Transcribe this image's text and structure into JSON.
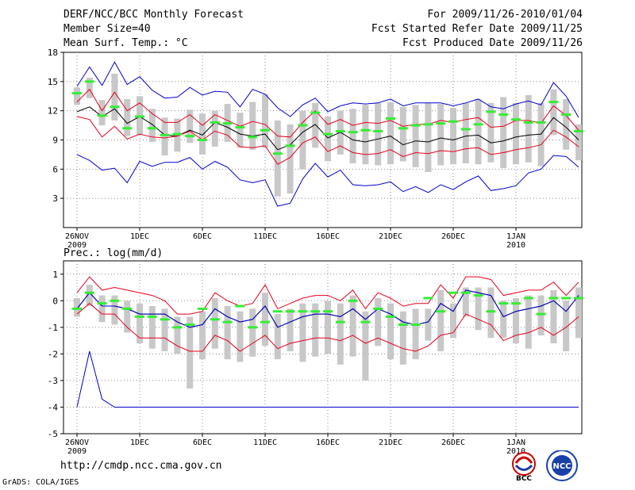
{
  "header": {
    "title": "DERF/NCC/BCC Monthly Forecast",
    "member_size": "Member Size=40",
    "variable_temp": "Mean Surf. Temp.: °C",
    "period": "For 2009/11/26-2010/01/04",
    "start_date": "Fcst Started Refer Date 2009/11/25",
    "produced_date": "Fcst Produced Date 2009/11/26"
  },
  "footer": {
    "url": "http://cmdp.ncc.cma.gov.cn",
    "credit": "GrADS: COLA/IGES"
  },
  "logos": {
    "bcc": "BCC",
    "ncc": "NCC"
  },
  "colors": {
    "mean": "#000000",
    "spread": "#e8001c",
    "range": "#0000cc",
    "obs": "#33ee33",
    "box": "#c8c8c8",
    "grid": "#888888"
  },
  "chart_data": [
    {
      "type": "line",
      "title": "Mean Surf. Temp.: °C",
      "ylim": [
        0,
        18
      ],
      "yticks": [
        3,
        6,
        9,
        12,
        15,
        18
      ],
      "xticks": [
        {
          "day": 1,
          "label": "26NOV",
          "sublabel": "2009"
        },
        {
          "day": 6,
          "label": "1DEC"
        },
        {
          "day": 11,
          "label": "6DEC"
        },
        {
          "day": 16,
          "label": "11DEC"
        },
        {
          "day": 21,
          "label": "16DEC"
        },
        {
          "day": 26,
          "label": "21DEC"
        },
        {
          "day": 31,
          "label": "26DEC"
        },
        {
          "day": 36,
          "label": "1JAN",
          "sublabel": "2010"
        }
      ],
      "grid": true,
      "series": [
        {
          "name": "ensemble-max",
          "values": [
            7.5,
            6.9,
            5.9,
            6.1,
            4.6,
            6.8,
            6.3,
            6.7,
            6.7,
            7.2,
            6.0,
            6.8,
            6.2,
            4.9,
            4.6,
            4.9,
            2.2,
            2.5,
            5.0,
            6.6,
            5.2,
            5.9,
            4.4,
            4.3,
            4.4,
            4.7,
            3.7,
            4.2,
            3.6,
            4.4,
            3.9,
            4.7,
            5.3,
            3.8,
            4.0,
            4.3,
            5.6,
            6.0,
            7.4,
            7.3,
            6.2
          ]
        },
        {
          "name": "spread-upper",
          "values": [
            12.9,
            14.2,
            12.0,
            13.9,
            12.0,
            12.8,
            11.7,
            10.8,
            10.8,
            11.6,
            10.5,
            11.6,
            11.0,
            10.4,
            10.9,
            10.6,
            9.4,
            9.3,
            10.8,
            12.0,
            10.6,
            11.1,
            10.5,
            10.8,
            10.7,
            11.0,
            10.4,
            10.6,
            10.6,
            11.0,
            10.8,
            11.1,
            11.3,
            10.3,
            10.4,
            11.0,
            11.0,
            10.7,
            12.5,
            11.5,
            10.0
          ]
        },
        {
          "name": "mean",
          "values": [
            11.9,
            12.4,
            11.4,
            12.2,
            10.7,
            11.4,
            10.6,
            9.5,
            9.4,
            10.0,
            9.5,
            10.8,
            10.3,
            9.6,
            9.4,
            9.6,
            8.0,
            8.5,
            9.8,
            10.6,
            9.2,
            9.8,
            9.0,
            8.8,
            9.1,
            9.4,
            8.5,
            8.9,
            8.8,
            9.2,
            9.0,
            9.4,
            9.5,
            8.7,
            8.9,
            9.3,
            9.5,
            9.6,
            11.3,
            10.3,
            9.0
          ]
        },
        {
          "name": "spread-lower",
          "values": [
            11.4,
            11.1,
            9.3,
            10.4,
            9.1,
            9.6,
            9.3,
            9.2,
            9.4,
            9.9,
            9.0,
            9.9,
            9.5,
            8.3,
            8.2,
            8.4,
            6.5,
            7.2,
            8.7,
            9.3,
            7.8,
            8.4,
            7.7,
            7.5,
            7.6,
            8.0,
            7.3,
            7.7,
            7.6,
            7.9,
            7.8,
            8.1,
            8.2,
            7.5,
            7.7,
            8.0,
            8.2,
            8.5,
            10.0,
            9.3,
            8.3
          ]
        },
        {
          "name": "ensemble-min",
          "values": [
            14.5,
            16.5,
            14.6,
            17.0,
            14.7,
            15.5,
            14.1,
            13.3,
            13.4,
            14.4,
            13.6,
            14.0,
            13.9,
            12.4,
            14.2,
            13.7,
            12.3,
            11.4,
            12.6,
            13.3,
            11.9,
            12.5,
            12.8,
            12.7,
            12.8,
            13.2,
            12.5,
            12.8,
            12.8,
            12.8,
            12.5,
            12.8,
            13.2,
            12.4,
            12.2,
            12.7,
            13.0,
            12.6,
            14.9,
            13.5,
            11.3
          ]
        }
      ],
      "obs": [
        13.8,
        15.0,
        11.5,
        12.4,
        10.2,
        11.4,
        10.2,
        9.5,
        9.6,
        9.4,
        9.0,
        10.8,
        10.7,
        10.3,
        9.3,
        10.0,
        7.6,
        8.4,
        10.5,
        11.8,
        9.6,
        9.9,
        9.8,
        10.0,
        9.9,
        11.2,
        10.2,
        10.5,
        10.6,
        10.7,
        10.9,
        10.1,
        10.6,
        11.9,
        11.6,
        11.1,
        10.8,
        10.8,
        12.9,
        11.6,
        9.9
      ],
      "box_low": [
        12.6,
        13.3,
        10.5,
        11.0,
        9.4,
        9.5,
        8.8,
        7.4,
        7.8,
        8.7,
        7.5,
        8.3,
        8.8,
        8.2,
        8.0,
        8.2,
        3.2,
        3.5,
        6.0,
        8.2,
        6.8,
        7.5,
        6.6,
        6.5,
        6.4,
        6.5,
        6.8,
        6.2,
        5.7,
        6.4,
        6.5,
        6.6,
        6.5,
        6.7,
        6.1,
        6.5,
        6.7,
        6.3,
        9.5,
        8.0,
        6.9
      ],
      "box_high": [
        14.4,
        15.4,
        13.1,
        15.8,
        13.2,
        13.5,
        12.2,
        11.3,
        11.2,
        12.1,
        11.7,
        12.0,
        12.7,
        11.8,
        12.9,
        13.7,
        11.0,
        10.6,
        12.0,
        12.8,
        11.4,
        12.0,
        12.2,
        12.6,
        12.8,
        12.9,
        12.4,
        12.6,
        12.8,
        12.7,
        12.3,
        12.8,
        13.2,
        12.8,
        13.4,
        12.8,
        13.6,
        12.8,
        14.2,
        13.2,
        10.6
      ]
    },
    {
      "type": "line",
      "title": "Prec.: log(mm/d)",
      "ylim": [
        -5,
        1.5
      ],
      "yticks": [
        -5,
        -4,
        -3,
        -2,
        -1,
        0,
        1
      ],
      "xticks": [
        {
          "day": 1,
          "label": "26NOV",
          "sublabel": "2009"
        },
        {
          "day": 6,
          "label": "1DEC"
        },
        {
          "day": 11,
          "label": "6DEC"
        },
        {
          "day": 16,
          "label": "11DEC"
        },
        {
          "day": 21,
          "label": "16DEC"
        },
        {
          "day": 26,
          "label": "21DEC"
        },
        {
          "day": 31,
          "label": "26DEC"
        },
        {
          "day": 36,
          "label": "1JAN",
          "sublabel": "2010"
        }
      ],
      "grid": true,
      "series": [
        {
          "name": "ensemble-min",
          "values": [
            -4.0,
            -1.9,
            -3.7,
            -4.0,
            -4.0,
            -4.0,
            -4.0,
            -4.0,
            -4.0,
            -4.0,
            -4.0,
            -4.0,
            -4.0,
            -4.0,
            -4.0,
            -4.0,
            -4.0,
            -4.0,
            -4.0,
            -4.0,
            -4.0,
            -4.0,
            -4.0,
            -4.0,
            -4.0,
            -4.0,
            -4.0,
            -4.0,
            -4.0,
            -4.0,
            -4.0,
            -4.0,
            -4.0,
            -4.0,
            -4.0,
            -4.0,
            -4.0,
            -4.0,
            -4.0,
            -4.0,
            -4.0
          ]
        },
        {
          "name": "spread-lower",
          "values": [
            -0.5,
            -0.1,
            -0.5,
            -0.5,
            -1.0,
            -1.4,
            -1.4,
            -1.4,
            -1.7,
            -1.9,
            -1.9,
            -1.3,
            -1.5,
            -1.9,
            -1.6,
            -1.3,
            -1.8,
            -1.6,
            -1.5,
            -1.4,
            -1.4,
            -1.5,
            -1.3,
            -1.6,
            -1.4,
            -1.6,
            -1.8,
            -1.9,
            -1.7,
            -1.3,
            -1.2,
            -0.5,
            -0.7,
            -0.9,
            -1.5,
            -1.3,
            -1.2,
            -1.0,
            -1.3,
            -1.0,
            -0.6
          ]
        },
        {
          "name": "mean",
          "values": [
            -0.3,
            0.3,
            -0.2,
            -0.2,
            -0.3,
            -0.5,
            -0.5,
            -0.5,
            -0.8,
            -1.0,
            -0.9,
            -0.3,
            -0.6,
            -0.8,
            -0.7,
            -0.2,
            -1.0,
            -0.8,
            -0.6,
            -0.5,
            -0.5,
            -0.6,
            -0.3,
            -0.7,
            -0.3,
            -0.5,
            -0.8,
            -0.9,
            -0.8,
            -0.1,
            -0.4,
            0.4,
            0.3,
            0.2,
            -0.6,
            -0.4,
            -0.3,
            -0.2,
            0.0,
            -0.4,
            0.2
          ]
        },
        {
          "name": "spread-upper",
          "values": [
            0.3,
            0.9,
            0.4,
            0.5,
            0.4,
            0.3,
            0.2,
            0.0,
            -0.5,
            -0.5,
            -0.4,
            0.3,
            0.0,
            -0.2,
            -0.1,
            0.6,
            -0.3,
            -0.1,
            0.1,
            0.2,
            0.2,
            0.0,
            0.4,
            -0.3,
            0.3,
            0.1,
            -0.2,
            -0.1,
            -0.1,
            0.6,
            0.1,
            0.9,
            0.9,
            0.8,
            0.2,
            0.3,
            0.4,
            0.4,
            0.7,
            0.2,
            0.7
          ]
        },
        {
          "name": "ensemble-max",
          "values": [
            -0.3,
            0.3,
            -0.2,
            -0.2,
            -0.3,
            -0.5,
            -0.5,
            -0.5,
            -0.8,
            -1.0,
            -0.9,
            -0.3,
            -0.6,
            -0.8,
            -0.7,
            -0.2,
            -1.0,
            -0.8,
            -0.6,
            -0.5,
            -0.5,
            -0.6,
            -0.3,
            -0.7,
            -0.3,
            -0.5,
            -0.8,
            -0.9,
            -0.8,
            -0.1,
            -0.4,
            0.4,
            0.3,
            0.2,
            -0.6,
            -0.4,
            -0.3,
            -0.2,
            0.0,
            -0.4,
            0.2
          ]
        }
      ],
      "obs": [
        -0.3,
        0.3,
        -0.1,
        0.0,
        -0.3,
        -0.6,
        -0.6,
        -0.7,
        -1.0,
        -0.9,
        -0.3,
        -0.7,
        -0.8,
        -0.2,
        -1.0,
        -0.8,
        -0.4,
        -0.4,
        -0.4,
        -0.4,
        -0.4,
        -0.8,
        0.0,
        -0.8,
        -0.3,
        -0.6,
        -0.9,
        -0.9,
        0.1,
        -0.4,
        0.3,
        0.3,
        0.2,
        -0.4,
        -0.1,
        -0.1,
        0.1,
        -0.5,
        0.1,
        0.1,
        0.1
      ],
      "box_low": [
        -0.6,
        -0.2,
        -0.8,
        -0.9,
        -1.2,
        -1.6,
        -1.8,
        -1.9,
        -2.0,
        -3.3,
        -2.2,
        -1.8,
        -2.2,
        -2.3,
        -2.1,
        -1.7,
        -2.2,
        -1.9,
        -2.3,
        -2.1,
        -2.0,
        -2.4,
        -2.1,
        -3.0,
        -1.7,
        -2.2,
        -2.4,
        -2.2,
        -1.5,
        -1.9,
        -1.4,
        -0.6,
        -1.1,
        -1.4,
        -1.4,
        -1.6,
        -1.8,
        -1.3,
        -1.6,
        -1.9,
        -1.4
      ],
      "box_high": [
        0.1,
        0.6,
        0.2,
        0.2,
        0.0,
        -0.1,
        -0.2,
        -0.3,
        -0.6,
        -0.6,
        -0.4,
        0.1,
        -0.2,
        -0.4,
        -0.3,
        0.3,
        -0.5,
        -0.3,
        -0.1,
        -0.1,
        0.0,
        -0.1,
        0.2,
        -0.4,
        0.1,
        -0.1,
        -0.4,
        -0.3,
        -0.3,
        0.4,
        -0.1,
        0.5,
        0.5,
        0.5,
        0.0,
        0.1,
        0.2,
        0.2,
        0.4,
        0.0,
        0.5
      ]
    }
  ]
}
